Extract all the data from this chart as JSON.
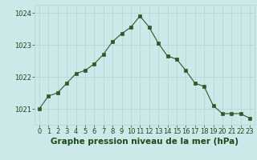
{
  "x": [
    0,
    1,
    2,
    3,
    4,
    5,
    6,
    7,
    8,
    9,
    10,
    11,
    12,
    13,
    14,
    15,
    16,
    17,
    18,
    19,
    20,
    21,
    22,
    23
  ],
  "y": [
    1021.0,
    1021.4,
    1021.5,
    1021.8,
    1022.1,
    1022.2,
    1022.4,
    1022.7,
    1023.1,
    1023.35,
    1023.55,
    1023.9,
    1023.55,
    1023.05,
    1022.65,
    1022.55,
    1022.2,
    1021.8,
    1021.7,
    1021.1,
    1020.85,
    1020.85,
    1020.85,
    1020.7
  ],
  "line_color": "#2d5a27",
  "marker_color": "#2d5a27",
  "bg_color": "#cce8e8",
  "grid_color": "#b0d4d4",
  "axis_label_color": "#1a4a1a",
  "ylim": [
    1020.5,
    1024.25
  ],
  "yticks": [
    1021,
    1022,
    1023,
    1024
  ],
  "xlim": [
    -0.5,
    23.5
  ],
  "xlabel": "Graphe pression niveau de la mer (hPa)",
  "xlabel_fontsize": 7.5,
  "tick_fontsize": 6.0
}
